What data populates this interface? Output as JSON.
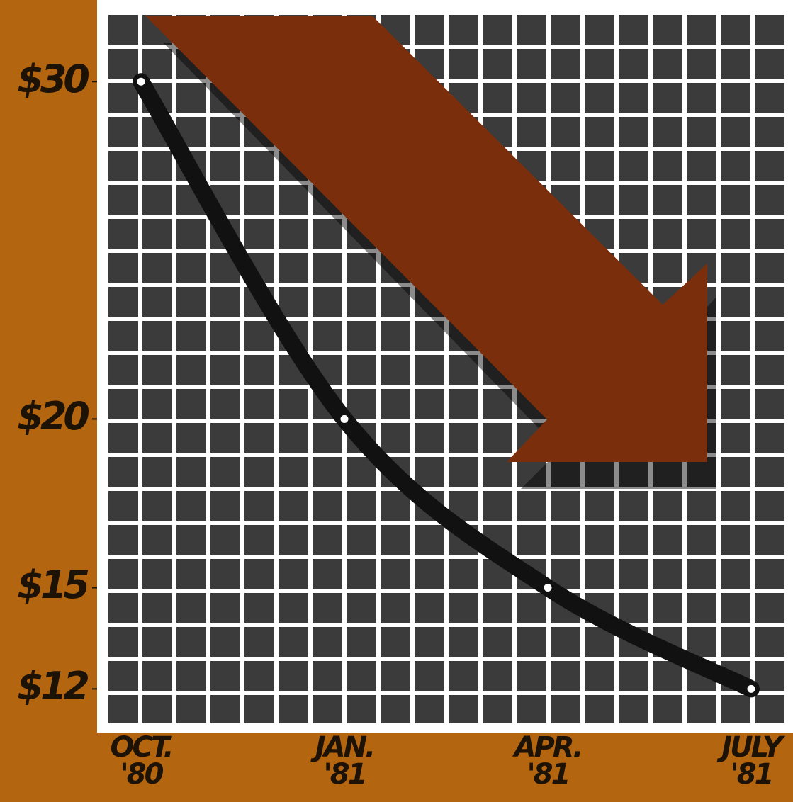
{
  "chart_data": {
    "type": "line",
    "categories": [
      "OCT.\n'80",
      "JAN.\n'81",
      "APR.\n'81",
      "JULY\n'81"
    ],
    "series": [
      {
        "color": "#111111",
        "values": [
          30,
          20,
          15,
          12
        ]
      }
    ],
    "ylim": [
      11,
      32
    ],
    "yticks": [
      {
        "value": 30,
        "label": "$30"
      },
      {
        "value": 20,
        "label": "$20"
      },
      {
        "value": 15,
        "label": "$15"
      },
      {
        "value": 12,
        "label": "$12"
      }
    ],
    "grid": true
  }
}
